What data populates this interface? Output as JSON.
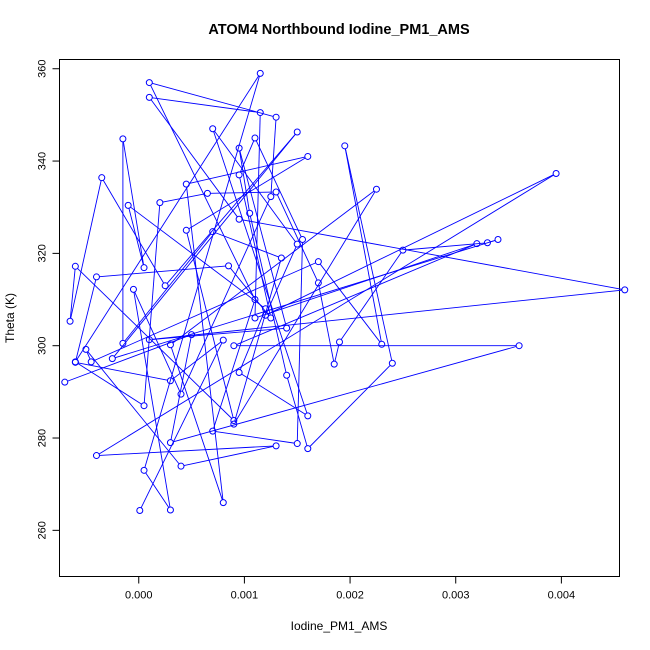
{
  "chart_data": {
    "type": "line",
    "title": "ATOM4 Northbound Iodine_PM1_AMS",
    "xlabel": "Iodine_PM1_AMS",
    "ylabel": "Theta (K)",
    "xlim": [
      -0.00075,
      0.00455
    ],
    "ylim": [
      250,
      362
    ],
    "xticks": [
      0.0,
      0.001,
      0.002,
      0.003,
      0.004
    ],
    "xtick_labels": [
      "0.000",
      "0.001",
      "0.002",
      "0.003",
      "0.004"
    ],
    "yticks": [
      260,
      280,
      300,
      320,
      340,
      360
    ],
    "ytick_labels": [
      "260",
      "280",
      "300",
      "320",
      "340",
      "360"
    ],
    "series_color": "#0000ff",
    "points": [
      [
        1e-05,
        264.3
      ],
      [
        0.0008,
        301.2
      ],
      [
        0.0003,
        292.4
      ],
      [
        -0.0006,
        296.4
      ],
      [
        -0.0004,
        314.9
      ],
      [
        0.00085,
        317.3
      ],
      [
        0.00125,
        306.0
      ],
      [
        0.00095,
        337.0
      ],
      [
        0.0011,
        345.0
      ],
      [
        0.00155,
        323.0
      ],
      [
        0.0015,
        278.8
      ],
      [
        0.0007,
        281.5
      ],
      [
        0.0011,
        310.0
      ],
      [
        0.0001,
        357.0
      ],
      [
        0.0013,
        349.5
      ],
      [
        0.00125,
        332.3
      ],
      [
        0.0004,
        289.5
      ],
      [
        -5e-05,
        312.2
      ],
      [
        0.0003,
        264.4
      ],
      [
        5e-05,
        273.0
      ],
      [
        0.00115,
        359.0
      ],
      [
        -0.0006,
        296.5
      ],
      [
        5e-05,
        287.0
      ],
      [
        0.0002,
        331.0
      ],
      [
        0.00065,
        333.0
      ],
      [
        0.0013,
        333.3
      ],
      [
        0.0017,
        313.6
      ],
      [
        0.00185,
        296.0
      ],
      [
        0.0019,
        300.8
      ],
      [
        0.0025,
        320.7
      ],
      [
        0.0033,
        322.3
      ],
      [
        0.0034,
        323.0
      ],
      [
        -0.00025,
        297.2
      ],
      [
        0.0015,
        346.3
      ],
      [
        0.00025,
        313.0
      ],
      [
        -0.00035,
        336.4
      ],
      [
        -0.00065,
        305.3
      ],
      [
        -0.0006,
        317.2
      ],
      [
        0.0009,
        283.8
      ],
      [
        0.00045,
        325.0
      ],
      [
        0.0016,
        341.0
      ],
      [
        0.00045,
        335.0
      ],
      [
        0.0008,
        266.0
      ],
      [
        0.0003,
        300.2
      ],
      [
        0.00225,
        333.9
      ],
      [
        0.0009,
        283.0
      ],
      [
        0.00135,
        319.0
      ],
      [
        0.0007,
        324.7
      ],
      [
        -0.00015,
        300.5
      ],
      [
        -0.00015,
        344.8
      ],
      [
        5e-05,
        316.9
      ],
      [
        -0.0001,
        330.4
      ],
      [
        0.0012,
        308.0
      ],
      [
        0.00095,
        294.2
      ],
      [
        0.0016,
        284.8
      ],
      [
        0.0007,
        347.0
      ],
      [
        0.0015,
        322.0
      ],
      [
        0.0012,
        306.6
      ],
      [
        0.00395,
        337.3
      ],
      [
        -0.0004,
        276.2
      ],
      [
        0.0013,
        278.3
      ],
      [
        0.0004,
        273.9
      ],
      [
        -0.0005,
        299.2
      ],
      [
        -0.00045,
        296.5
      ],
      [
        0.0017,
        318.2
      ],
      [
        0.0023,
        300.3
      ],
      [
        0.00195,
        343.3
      ],
      [
        0.0024,
        296.2
      ],
      [
        0.0016,
        277.7
      ],
      [
        0.0014,
        293.6
      ],
      [
        0.00105,
        328.7
      ],
      [
        0.00095,
        342.8
      ],
      [
        0.0014,
        303.8
      ],
      [
        0.0001,
        301.3
      ],
      [
        0.0046,
        312.1
      ],
      [
        0.00095,
        327.4
      ],
      [
        0.0001,
        353.8
      ],
      [
        0.00115,
        350.5
      ],
      [
        0.0011,
        306.0
      ],
      [
        0.0032,
        322.1
      ],
      [
        0.0009,
        300.0
      ],
      [
        0.0036,
        300.0
      ],
      [
        0.0003,
        279.0
      ],
      [
        0.0005,
        302.4
      ],
      [
        -0.0007,
        292.1
      ]
    ]
  }
}
